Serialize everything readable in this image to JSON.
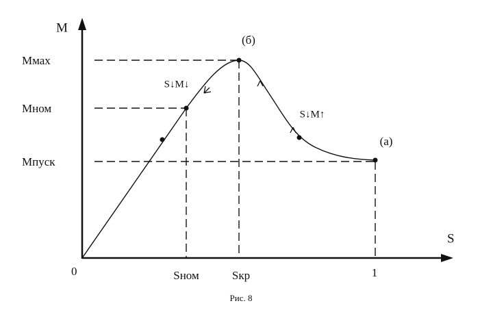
{
  "axes": {
    "y_label": "M",
    "x_label": "S",
    "origin": "0"
  },
  "y_labels": [
    "Mмах",
    "Mном",
    "Mпуск"
  ],
  "x_labels": [
    "Sном",
    "Sкр",
    "1"
  ],
  "points": [
    "(б)",
    "(a)"
  ],
  "annotations": [
    "S↓M↓",
    "S↓M↑"
  ],
  "caption": "Рис. 8"
}
